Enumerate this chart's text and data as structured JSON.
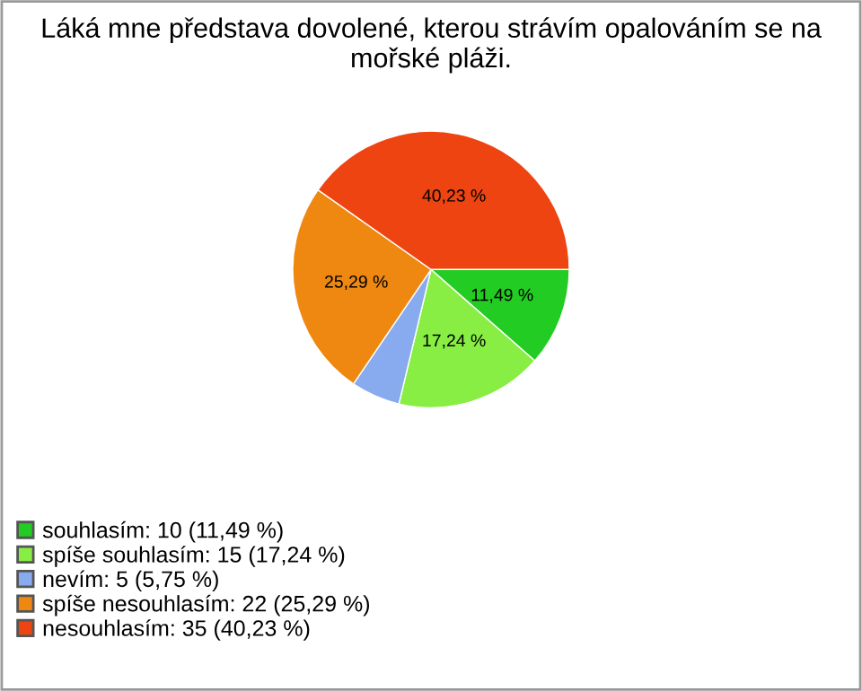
{
  "chart_data": {
    "type": "pie",
    "title": "Láká mne představa dovolené, kterou strávím opalováním se na mořské pláži.",
    "categories": [
      "souhlasím: 10 (11,49 %)",
      "spíše souhlasím: 15 (17,24 %)",
      "nevím: 5 (5,75 %)",
      "spíše nesouhlasím: 22 (25,29 %)",
      "nesouhlasím: 35 (40,23 %)"
    ],
    "values": [
      11.49,
      17.24,
      5.75,
      25.29,
      40.23
    ],
    "colors": [
      "#22cc22",
      "#88ee44",
      "#88aaee",
      "#ee8811",
      "#ee4411"
    ],
    "value_labels": [
      "11,49 %",
      "17,24 %",
      null,
      "25,29 %",
      "40,23 %"
    ],
    "legend": "bottom left"
  }
}
